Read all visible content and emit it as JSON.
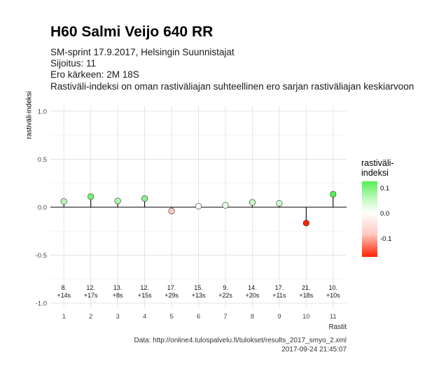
{
  "title": "H60 Salmi Veijo 640 RR",
  "subtitle_lines": [
    "SM-sprint 17.9.2017, Helsingin Suunnistajat",
    "Sijoitus: 11",
    "Ero kärkeen: 2M 18S",
    "Rastiväli-indeksi on oman rastiväliajan suhteellinen ero sarjan rastiväliajan keskiarvoon"
  ],
  "legend": {
    "title_line1": "rastiväli-",
    "title_line2": "indeksi",
    "ticks": [
      "0.1",
      "0.0",
      "-0.1"
    ],
    "colors": {
      "high": "#55ee55",
      "mid": "#ffffff",
      "low": "#ff2200"
    }
  },
  "footer": {
    "source": "Data: http://online4.tulospalvelu.fi/tulokset/results_2017_smyo_2.xml",
    "timestamp": "2017-09-24 21:45:07"
  },
  "chart_data": {
    "type": "scatter",
    "style": "lollipop",
    "title": "H60 Salmi Veijo 640 RR",
    "xlabel": "Rastit",
    "ylabel": "rastiväli-indeksi",
    "xlim": [
      0.5,
      11.5
    ],
    "ylim": [
      -1.05,
      1.05
    ],
    "x_ticks": [
      "1",
      "2",
      "3",
      "4",
      "5",
      "6",
      "7",
      "8",
      "9",
      "10",
      "11"
    ],
    "y_ticks": [
      "1.0",
      "0.5",
      "0.0",
      "-0.5",
      "-1.0"
    ],
    "grid": true,
    "legend_position": "right",
    "x": [
      1,
      2,
      3,
      4,
      5,
      6,
      7,
      8,
      9,
      10,
      11
    ],
    "values": [
      0.06,
      0.11,
      0.065,
      0.09,
      -0.04,
      0.01,
      0.02,
      0.05,
      0.04,
      -0.165,
      0.135
    ],
    "point_labels": [
      [
        "8.",
        "+14s"
      ],
      [
        "12.",
        "+17s"
      ],
      [
        "13.",
        "+8s"
      ],
      [
        "12.",
        "+15s"
      ],
      [
        "17.",
        "+29s"
      ],
      [
        "15.",
        "+13s"
      ],
      [
        "9.",
        "+22s"
      ],
      [
        "14.",
        "+20s"
      ],
      [
        "17.",
        "+11s"
      ],
      [
        "21.",
        "+18s"
      ],
      [
        "10.",
        "+10s"
      ]
    ]
  }
}
